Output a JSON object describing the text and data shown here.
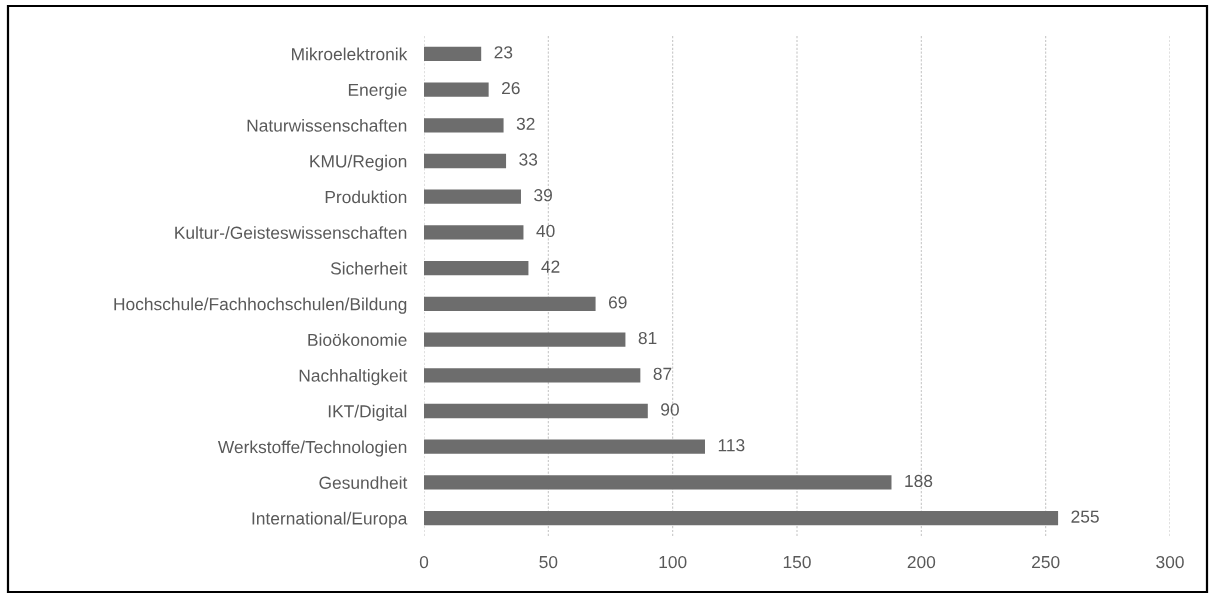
{
  "chart_data": {
    "type": "bar",
    "orientation": "horizontal",
    "categories": [
      "Mikroelektronik",
      "Energie",
      "Naturwissenschaften",
      "KMU/Region",
      "Produktion",
      "Kultur-/Geisteswissenschaften",
      "Sicherheit",
      "Hochschule/Fachhochschulen/Bildung",
      "Bioökonomie",
      "Nachhaltigkeit",
      "IKT/Digital",
      "Werkstoffe/Technologien",
      "Gesundheit",
      "International/Europa"
    ],
    "values": [
      23,
      26,
      32,
      33,
      39,
      40,
      42,
      69,
      81,
      87,
      90,
      113,
      188,
      255
    ],
    "color": "#6d6d6d",
    "xlim": [
      0,
      300
    ],
    "xticks": [
      0,
      50,
      100,
      150,
      200,
      250,
      300
    ],
    "grid": "x",
    "data_labels": true
  }
}
